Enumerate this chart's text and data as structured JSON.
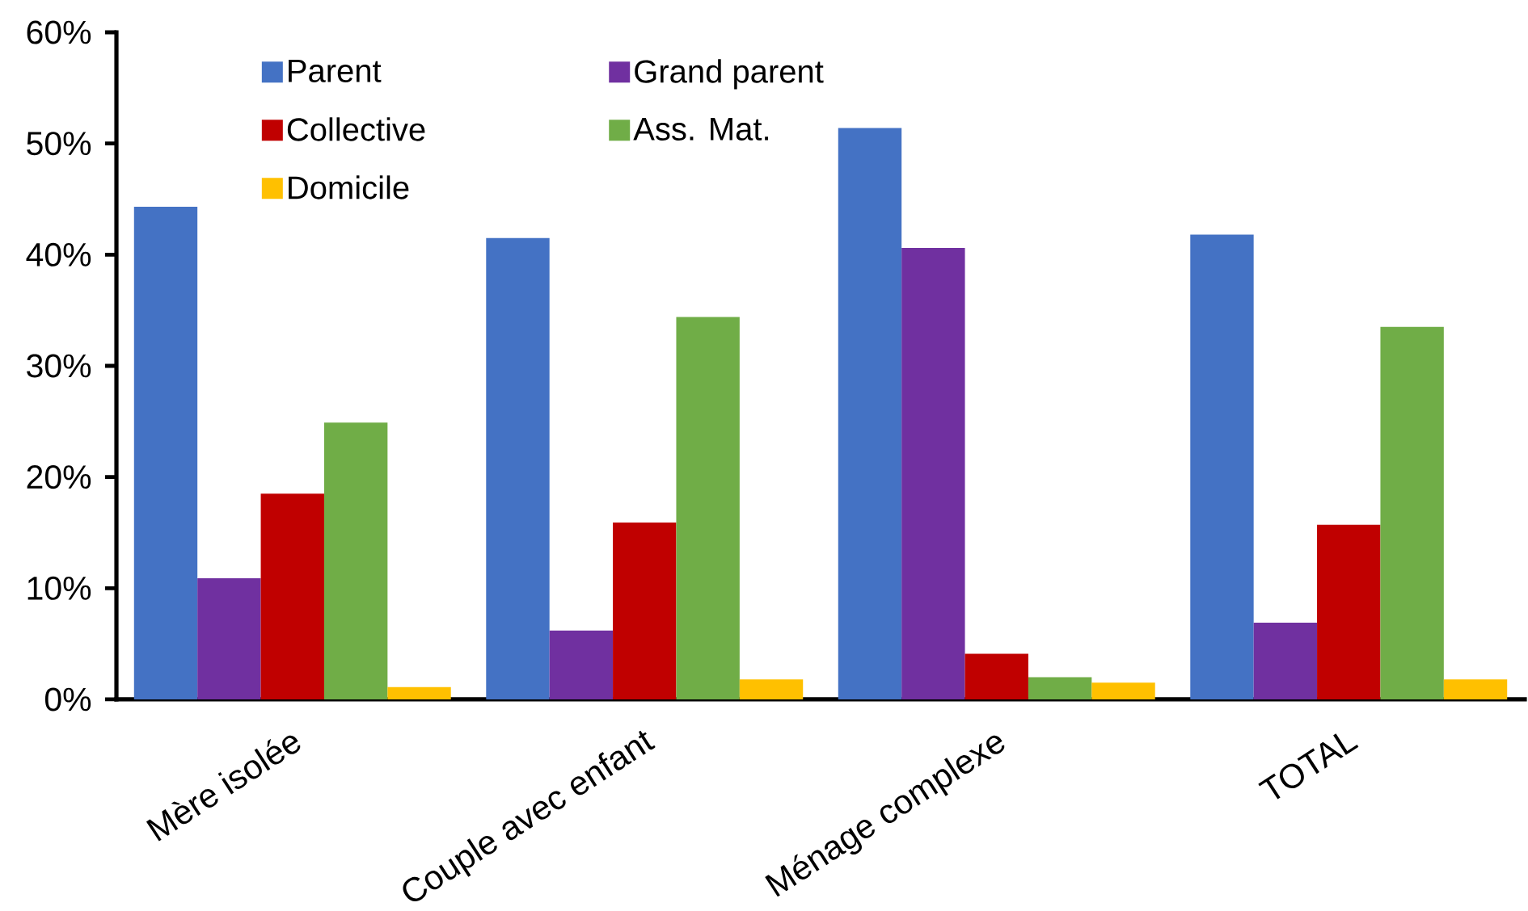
{
  "chart_data": {
    "type": "bar",
    "categories": [
      "Mère isolée",
      "Couple avec enfant",
      "Ménage complexe",
      "TOTAL"
    ],
    "series": [
      {
        "name": "Parent",
        "color": "#4472c4",
        "values": [
          44.3,
          41.5,
          51.4,
          41.8
        ]
      },
      {
        "name": "Grand parent",
        "color": "#7030a0",
        "values": [
          10.9,
          6.2,
          40.6,
          6.9
        ]
      },
      {
        "name": "Collective",
        "color": "#c00000",
        "values": [
          18.5,
          15.9,
          4.1,
          15.7
        ]
      },
      {
        "name": "Ass. Mat.",
        "color": "#70ad47",
        "values": [
          24.9,
          34.4,
          2.0,
          33.5
        ]
      },
      {
        "name": "Domicile",
        "color": "#ffc000",
        "values": [
          1.1,
          1.8,
          1.5,
          1.8
        ]
      }
    ],
    "ylim": [
      0,
      60
    ],
    "yticks": [
      {
        "value": 0,
        "label": "0%"
      },
      {
        "value": 10,
        "label": "10%"
      },
      {
        "value": 20,
        "label": "20%"
      },
      {
        "value": 30,
        "label": "30%"
      },
      {
        "value": 40,
        "label": "40%"
      },
      {
        "value": 50,
        "label": "50%"
      },
      {
        "value": 60,
        "label": "60%"
      }
    ],
    "legend": "top left"
  }
}
